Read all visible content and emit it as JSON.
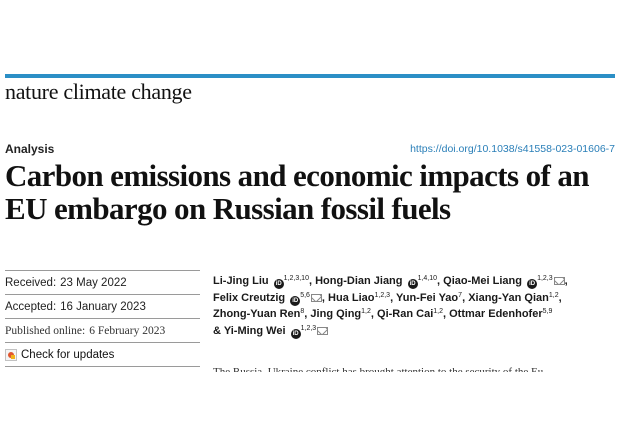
{
  "journal": {
    "name": "nature climate change"
  },
  "article": {
    "type": "Analysis",
    "doi": "https://doi.org/10.1038/s41558-023-01606-7",
    "title": "Carbon emissions and economic impacts of an EU embargo on Russian fossil fuels"
  },
  "dates": {
    "received_label": "Received:",
    "received": "23 May 2022",
    "accepted_label": "Accepted:",
    "accepted": "16 January 2023",
    "published_label": "Published online:",
    "published": "6 February 2023"
  },
  "check_updates": "Check for updates",
  "authors": [
    {
      "name": "Li-Jing Liu",
      "affil": "1,2,3,10"
    },
    {
      "name": "Hong-Dian Jiang",
      "affil": "1,4,10"
    },
    {
      "name": "Qiao-Mei Liang",
      "affil": "1,2,3"
    },
    {
      "name": "Felix Creutzig",
      "affil": "5,6"
    },
    {
      "name": "Hua Liao",
      "affil": "1,2,3"
    },
    {
      "name": "Yun-Fei Yao",
      "affil": "7"
    },
    {
      "name": "Xiang-Yan Qian",
      "affil": "1,2"
    },
    {
      "name": "Zhong-Yuan Ren",
      "affil": "8"
    },
    {
      "name": "Jing Qing",
      "affil": "1,2"
    },
    {
      "name": "Qi-Ran Cai",
      "affil": "1,2"
    },
    {
      "name": "Ottmar Edenhofer",
      "affil": "5,9"
    },
    {
      "name": "Yi-Ming Wei",
      "affil": "1,2,3"
    }
  ],
  "icons": {
    "orcid": "orcid-icon",
    "mail": "mail-icon",
    "check": "crossmark-icon"
  },
  "colors": {
    "accent": "#2b8fc6",
    "link": "#2a7fb8"
  },
  "abstract_snippet": "The Russia–Ukraine conflict has brought attention to the security of the Eu"
}
